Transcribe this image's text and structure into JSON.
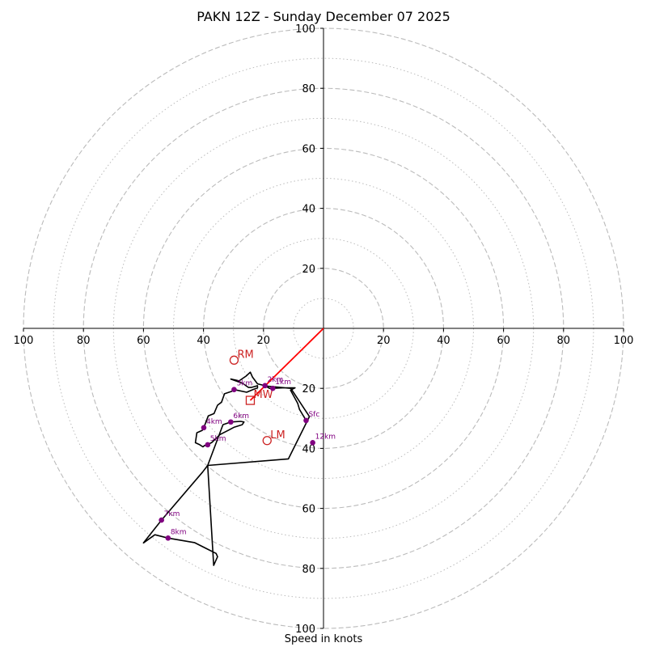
{
  "chart_data": {
    "type": "hodograph",
    "title": "PAKN 12Z - Sunday December 07 2025",
    "xlabel": "Speed in knots",
    "ylabel": "",
    "xlim": [
      -100,
      100
    ],
    "ylim": [
      -100,
      100
    ],
    "grid": true,
    "ring_major": [
      20,
      40,
      60,
      80,
      100
    ],
    "ring_minor": [
      10,
      30,
      50,
      70,
      90
    ],
    "ticks": {
      "x_left": [
        "100",
        "80",
        "60",
        "40",
        "20"
      ],
      "x_right": [
        "20",
        "40",
        "60",
        "80",
        "100"
      ],
      "y_up": [
        "20",
        "40",
        "60",
        "80",
        "100"
      ],
      "y_down": [
        "20",
        "40",
        "60",
        "80",
        "100"
      ]
    },
    "hodograph_trace": [
      [
        -5.8,
        -30.7
      ],
      [
        -8.0,
        -27.0
      ],
      [
        -8.6,
        -25.0
      ],
      [
        -11.0,
        -20.6
      ],
      [
        -9.5,
        -19.8
      ],
      [
        -11.6,
        -19.8
      ],
      [
        -13.0,
        -19.8
      ],
      [
        -16.9,
        -20.0
      ],
      [
        -18.0,
        -20.0
      ],
      [
        -19.5,
        -19.1
      ],
      [
        -22.0,
        -18.5
      ],
      [
        -23.7,
        -16.2
      ],
      [
        -24.4,
        -14.6
      ],
      [
        -25.8,
        -15.9
      ],
      [
        -28.1,
        -17.5
      ],
      [
        -30.9,
        -16.9
      ],
      [
        -27.0,
        -18.3
      ],
      [
        -25.0,
        -19.7
      ],
      [
        -24.1,
        -19.7
      ],
      [
        -22.0,
        -19.1
      ],
      [
        -22.0,
        -19.9
      ],
      [
        -23.2,
        -20.3
      ],
      [
        -25.6,
        -21.3
      ],
      [
        -29.8,
        -20.4
      ],
      [
        -30.6,
        -21.0
      ],
      [
        -33.0,
        -21.8
      ],
      [
        -34.0,
        -24.6
      ],
      [
        -35.3,
        -25.6
      ],
      [
        -36.5,
        -28.4
      ],
      [
        -38.4,
        -29.2
      ],
      [
        -39.9,
        -33.1
      ],
      [
        -40.4,
        -34.0
      ],
      [
        -42.2,
        -34.8
      ],
      [
        -42.7,
        -38.1
      ],
      [
        -41.4,
        -38.7
      ],
      [
        -40.2,
        -39.5
      ],
      [
        -39.6,
        -39.0
      ],
      [
        -39.2,
        -39.1
      ],
      [
        -37.2,
        -38.0
      ],
      [
        -34.5,
        -35.4
      ],
      [
        -31.6,
        -33.9
      ],
      [
        -29.9,
        -33.0
      ],
      [
        -27.1,
        -32.1
      ],
      [
        -26.5,
        -31.2
      ],
      [
        -27.6,
        -31.0
      ],
      [
        -30.9,
        -31.2
      ],
      [
        -33.5,
        -32.1
      ],
      [
        -38.6,
        -45.7
      ],
      [
        -40.3,
        -47.9
      ],
      [
        -54.0,
        -63.9
      ],
      [
        -60.0,
        -71.5
      ],
      [
        -56.2,
        -68.8
      ],
      [
        -51.8,
        -69.9
      ],
      [
        -43.0,
        -71.4
      ],
      [
        -35.8,
        -75.0
      ],
      [
        -35.3,
        -76.1
      ],
      [
        -36.6,
        -79.0
      ],
      [
        -38.6,
        -45.7
      ],
      [
        -11.7,
        -43.5
      ],
      [
        -4.7,
        -29.4
      ],
      [
        -10.9,
        -20.0
      ],
      [
        -19.7,
        -19.2
      ]
    ],
    "height_markers": [
      {
        "label": "Sfc",
        "u": -5.8,
        "v": -30.7
      },
      {
        "label": "1km",
        "u": -16.9,
        "v": -20.0
      },
      {
        "label": "2km",
        "u": -19.5,
        "v": -19.1
      },
      {
        "label": "3km",
        "u": -29.8,
        "v": -20.4
      },
      {
        "label": "4km",
        "u": -39.9,
        "v": -33.1
      },
      {
        "label": "5km",
        "u": -38.6,
        "v": -38.8
      },
      {
        "label": "6km",
        "u": -30.9,
        "v": -31.2
      },
      {
        "label": "7km",
        "u": -54.0,
        "v": -63.9
      },
      {
        "label": "8km",
        "u": -51.8,
        "v": -69.9
      },
      {
        "label": "12km",
        "u": -3.6,
        "v": -38.1
      }
    ],
    "storm_motion": [
      {
        "label": "RM",
        "u": -29.8,
        "v": -10.6,
        "marker": "circle"
      },
      {
        "label": "LM",
        "u": -18.8,
        "v": -37.4,
        "marker": "circle"
      },
      {
        "label": "MW",
        "u": -24.4,
        "v": -24.0,
        "marker": "square"
      }
    ],
    "shear_vector": {
      "from_u": 0,
      "from_v": 0,
      "to_u": -24.4,
      "to_v": -24.0
    },
    "colors": {
      "trace": "#000000",
      "markers": "#800080",
      "storm": "#cc2222",
      "shear": "#ff0000",
      "grid": "#bbbbbb"
    }
  }
}
